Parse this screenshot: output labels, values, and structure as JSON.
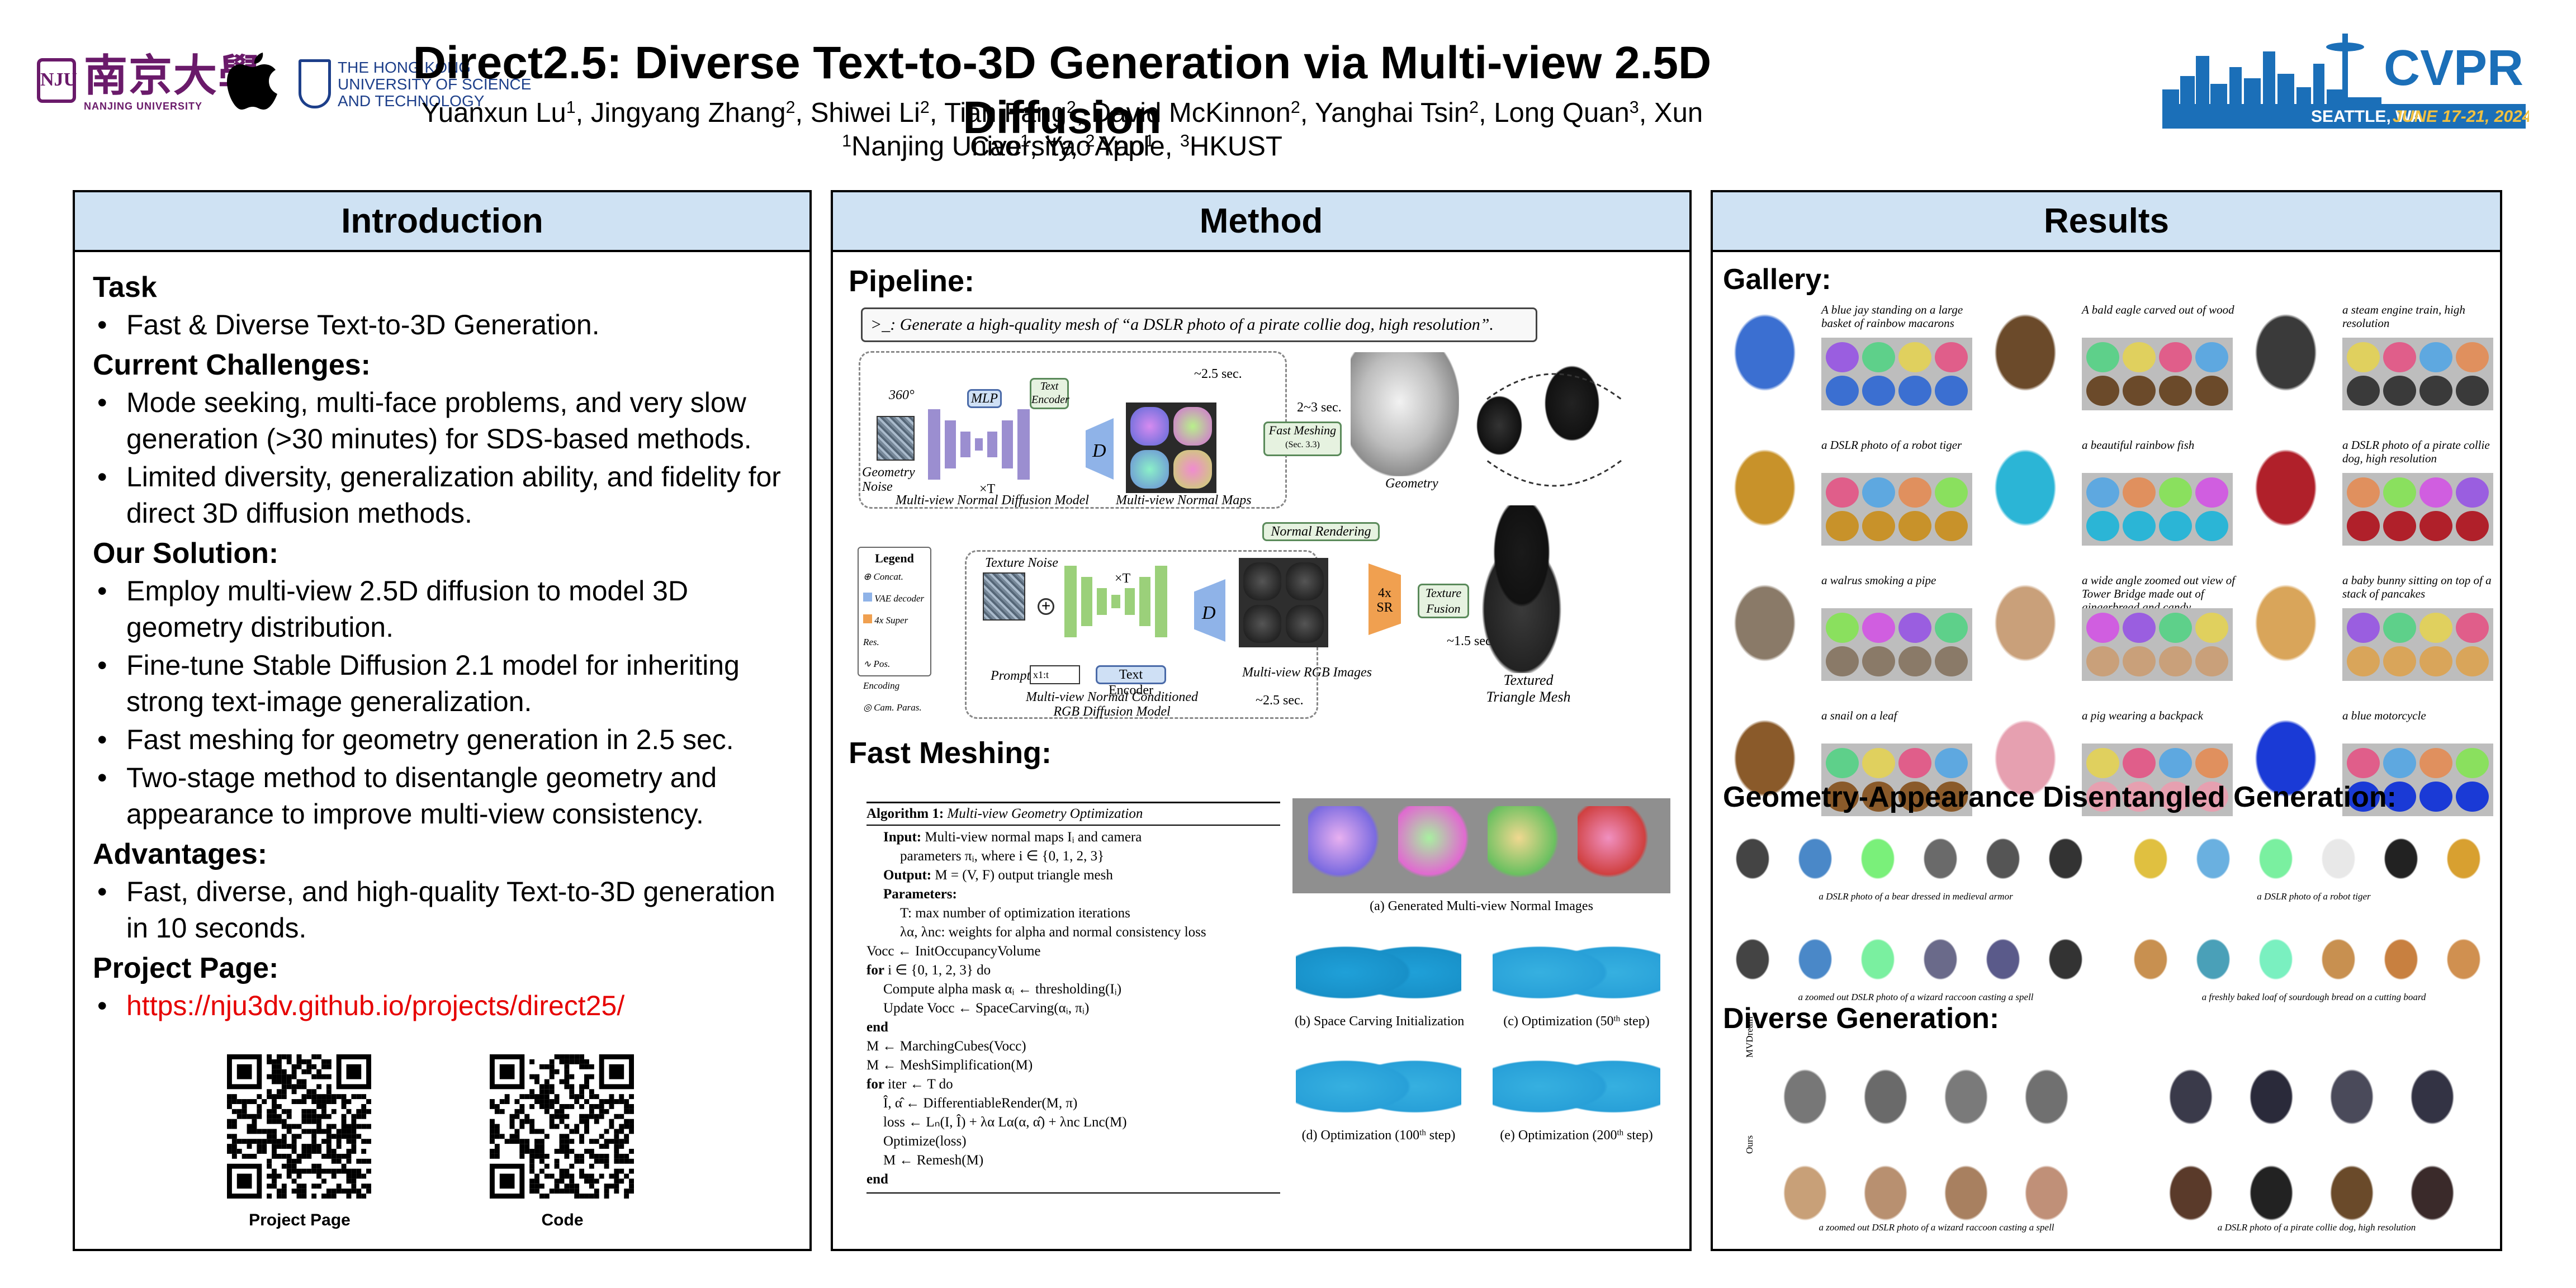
{
  "header": {
    "title": "Direct2.5: Diverse Text-to-3D Generation via Multi-view 2.5D Diffusion",
    "authors": [
      {
        "name": "Yuanxun Lu",
        "aff": "1"
      },
      {
        "name": "Jingyang Zhang",
        "aff": "2"
      },
      {
        "name": "Shiwei Li",
        "aff": "2"
      },
      {
        "name": "Tian Fang",
        "aff": "2"
      },
      {
        "name": "David McKinnon",
        "aff": "2"
      },
      {
        "name": "Yanghai Tsin",
        "aff": "2"
      },
      {
        "name": "Long Quan",
        "aff": "3"
      },
      {
        "name": "Xun Cao",
        "aff": "1"
      },
      {
        "name": "Yao Yao",
        "aff": "1"
      }
    ],
    "affiliations": [
      {
        "num": "1",
        "name": "Nanjing University,"
      },
      {
        "num": "2",
        "name": "Apple,"
      },
      {
        "num": "3",
        "name": "HKUST"
      }
    ],
    "nju_cn": "南京大學",
    "nju_en": "NANJING UNIVERSITY",
    "hkust_lines": [
      "THE HONG KONG",
      "UNIVERSITY OF SCIENCE",
      "AND TECHNOLOGY"
    ],
    "cvpr": {
      "name": "CVPR",
      "location": "SEATTLE, WA",
      "dates": "JUNE 17-21, 2024"
    }
  },
  "colors": {
    "panel_header": "#cfe2f3",
    "link": "#e60000",
    "nju_purple": "#6a1a6a",
    "hkust_blue": "#1d3f8a",
    "cvpr_blue": "#1b6fb8"
  },
  "intro": {
    "heading": "Introduction",
    "task_title": "Task",
    "task_items": [
      "Fast & Diverse Text-to-3D Generation."
    ],
    "challenges_title": "Current Challenges:",
    "challenges_items": [
      "Mode seeking, multi-face problems, and very slow generation (>30 minutes) for SDS-based methods.",
      "Limited diversity, generalization ability, and fidelity for direct 3D diffusion methods."
    ],
    "solution_title": "Our Solution:",
    "solution_items": [
      "Employ multi-view 2.5D diffusion to model 3D geometry distribution.",
      "Fine-tune Stable Diffusion 2.1 model for inheriting strong text-image generalization.",
      "Fast meshing for geometry generation in 2.5 sec.",
      "Two-stage method to disentangle geometry and appearance to improve multi-view consistency."
    ],
    "advantages_title": "Advantages:",
    "advantages_items": [
      "Fast, diverse, and high-quality Text-to-3D generation in 10 seconds."
    ],
    "project_title": "Project Page:",
    "project_link": "https://nju3dv.github.io/projects/direct25/",
    "qr_labels": {
      "project": "Project Page",
      "code": "Code"
    }
  },
  "method": {
    "heading": "Method",
    "pipeline_title": "Pipeline:",
    "prompt_symbol": ">_:",
    "prompt": "Generate a high-quality mesh of “a DSLR photo of a pirate collie dog, high resolution”.",
    "labels": {
      "deg360": "360°",
      "mlp": "MLP",
      "text_encoder": "Text Encoder",
      "time1": "~2.5 sec.",
      "geometry_noise": "Geometry Noise",
      "times_t": "×T",
      "d": "D",
      "mv_normal_diffusion": "Multi-view Normal Diffusion Model",
      "mv_normal_maps": "Multi-view Normal Maps",
      "time2": "2~3 sec.",
      "fast_meshing": "Fast Meshing",
      "fast_meshing_sec": "(Sec. 3.3)",
      "geometry": "Geometry",
      "normal_rendering": "Normal Rendering",
      "legend_title": "Legend",
      "legend_items": [
        "Concat.",
        "VAE decoder",
        "4x Super Res.",
        "Pos. Encoding",
        "Cam. Paras."
      ],
      "texture_noise": "Texture Noise",
      "prompt_label": "Prompt",
      "prompt_token": "x1:t",
      "text_encoder2": "Text Encoder",
      "mv_rgb_diffusion": "Multi-view Normal Conditioned RGB Diffusion Model",
      "mv_rgb_images": "Multi-view RGB Images",
      "time3": "~2.5 sec.",
      "sr": "4x SR",
      "texture_fusion": "Texture Fusion",
      "time4": "~1.5 sec.",
      "textured_mesh": "Textured Triangle Mesh"
    },
    "fast_meshing_title": "Fast Meshing:",
    "algorithm": {
      "title": "Algorithm 1:",
      "title_italic": "Multi-view Geometry Optimization",
      "lines": [
        {
          "b": "Input:",
          "t": "Multi-view normal maps Iᵢ and camera",
          "indent": 1
        },
        {
          "b": "",
          "t": "parameters πᵢ, where i ∈ {0, 1, 2, 3}",
          "indent": 2
        },
        {
          "b": "Output:",
          "t": "M = (V, F) output triangle mesh",
          "indent": 1
        },
        {
          "b": "Parameters:",
          "t": "",
          "indent": 1
        },
        {
          "b": "",
          "t": "T: max number of optimization iterations",
          "indent": 2
        },
        {
          "b": "",
          "t": "λα, λnc: weights for alpha and normal consistency loss",
          "indent": 2
        },
        {
          "b": "",
          "t": "Vocc ← InitOccupancyVolume",
          "indent": 0
        },
        {
          "b": "for",
          "t": "i ∈ {0, 1, 2, 3} do",
          "indent": 0
        },
        {
          "b": "",
          "t": "Compute alpha mask αᵢ ← thresholding(Iᵢ)",
          "indent": 1
        },
        {
          "b": "",
          "t": "Update Vocc ← SpaceCarving(αᵢ, πᵢ)",
          "indent": 1
        },
        {
          "b": "end",
          "t": "",
          "indent": 0
        },
        {
          "b": "",
          "t": "M ← MarchingCubes(Vocc)",
          "indent": 0
        },
        {
          "b": "",
          "t": "M ← MeshSimplification(M)",
          "indent": 0
        },
        {
          "b": "for",
          "t": "iter ← T do",
          "indent": 0
        },
        {
          "b": "",
          "t": "Î, α̂ ← DifferentiableRender(M, π)",
          "indent": 1
        },
        {
          "b": "",
          "t": "loss ← Lₙ(I, Î) + λα Lα(α, α̂) + λnc Lnc(M)",
          "indent": 1
        },
        {
          "b": "",
          "t": "Optimize(loss)",
          "indent": 1
        },
        {
          "b": "",
          "t": "M ← Remesh(M)",
          "indent": 1
        },
        {
          "b": "end",
          "t": "",
          "indent": 0
        }
      ]
    },
    "figure_captions": {
      "a": "(a) Generated Multi-view Normal Images",
      "b": "(b) Space Carving Initialization",
      "c_pre": "(c) Optimization (50",
      "c_sup": "th",
      "c_post": " step)",
      "d_pre": "(d) Optimization (100",
      "d_sup": "th",
      "d_post": "  step)",
      "e_pre": "(e) Optimization (200",
      "e_sup": "th",
      "e_post": " step)"
    }
  },
  "results": {
    "heading": "Results",
    "gallery_title": "Gallery:",
    "gallery": [
      {
        "caption": "A blue jay standing on a large basket of rainbow macarons",
        "color": "#3b6fd1"
      },
      {
        "caption": "A bald eagle carved out of wood",
        "color": "#6b4a2a"
      },
      {
        "caption": "a steam engine train, high resolution",
        "color": "#3a3a3a"
      },
      {
        "caption": "a DSLR photo of a robot tiger",
        "color": "#c8922a"
      },
      {
        "caption": "a beautiful rainbow fish",
        "color": "#2bb5d6"
      },
      {
        "caption": "a DSLR photo of a pirate collie dog, high resolution",
        "color": "#b0202a"
      },
      {
        "caption": "a walrus smoking a pipe",
        "color": "#8a7a68"
      },
      {
        "caption": "a wide angle zoomed out view of Tower Bridge made out of gingerbread and candy",
        "color": "#c9a07a"
      },
      {
        "caption": "a baby bunny sitting on top of a stack of pancakes",
        "color": "#d9a55a"
      },
      {
        "caption": "a snail on a leaf",
        "color": "#8a5a2a"
      },
      {
        "caption": "a pig wearing a backpack",
        "color": "#e6a0b0"
      },
      {
        "caption": "a blue motorcycle",
        "color": "#1a3ad6"
      }
    ],
    "geo_app_title": "Geometry-Appearance Disentangled Generation:",
    "geo_app_captions": [
      "a DSLR photo of a bear dressed in medieval armor",
      "a DSLR photo of a robot tiger",
      "a zoomed out DSLR photo of a wizard raccoon casting a spell",
      "a freshly baked loaf of sourdough bread on a cutting board"
    ],
    "diverse_title": "Diverse Generation:",
    "row_labels": [
      "MVDream",
      "Ours"
    ],
    "diverse_captions": [
      "a zoomed out DSLR photo of a wizard raccoon casting a spell",
      "a DSLR photo of a pirate collie dog, high resolution"
    ]
  }
}
